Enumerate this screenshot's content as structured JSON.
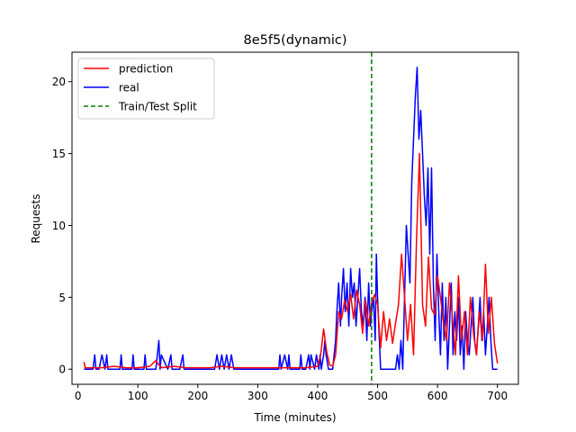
{
  "chart_data": {
    "type": "line",
    "title": "8e5f5(dynamic)",
    "xlabel": "Time (minutes)",
    "ylabel": "Requests",
    "xlim": [
      -10,
      735
    ],
    "ylim": [
      -1.05,
      22.05
    ],
    "xticks": [
      0,
      100,
      200,
      300,
      400,
      500,
      600,
      700
    ],
    "yticks": [
      0,
      5,
      10,
      15,
      20
    ],
    "grid": false,
    "legend": "upper-left",
    "split_x": 490,
    "series": [
      {
        "name": "prediction",
        "color": "#ff0000",
        "style": "solid",
        "x": [
          10,
          12,
          20,
          40,
          60,
          80,
          100,
          120,
          130,
          135,
          140,
          160,
          180,
          200,
          220,
          240,
          260,
          280,
          300,
          320,
          340,
          360,
          380,
          400,
          405,
          410,
          415,
          420,
          425,
          430,
          435,
          440,
          445,
          450,
          455,
          460,
          465,
          470,
          475,
          480,
          485,
          490,
          495,
          500,
          505,
          510,
          515,
          520,
          525,
          530,
          535,
          540,
          545,
          550,
          555,
          560,
          565,
          570,
          575,
          580,
          585,
          590,
          595,
          600,
          605,
          610,
          615,
          620,
          625,
          630,
          635,
          640,
          645,
          650,
          655,
          660,
          665,
          670,
          675,
          680,
          685,
          690,
          695,
          700
        ],
        "y": [
          0.5,
          0.1,
          0.1,
          0.1,
          0.2,
          0.1,
          0.1,
          0.2,
          0.6,
          0.3,
          0.1,
          0.2,
          0.1,
          0.1,
          0.1,
          0.2,
          0.1,
          0.1,
          0.1,
          0.1,
          0.1,
          0.1,
          0.1,
          0.2,
          1.0,
          2.8,
          1.2,
          0.3,
          0.2,
          1.0,
          4.0,
          3.5,
          4.8,
          4.0,
          5.2,
          3.5,
          5.5,
          4.5,
          2.5,
          4.8,
          3.0,
          4.6,
          5.2,
          4.5,
          1.5,
          4.0,
          2.0,
          3.5,
          1.8,
          3.2,
          4.5,
          8.0,
          5.0,
          2.0,
          4.5,
          1.0,
          9.0,
          15.0,
          4.5,
          3.0,
          7.8,
          4.2,
          3.8,
          6.5,
          5.0,
          3.2,
          2.0,
          6.0,
          3.5,
          1.0,
          6.5,
          2.0,
          4.0,
          1.0,
          5.0,
          2.5,
          1.0,
          4.0,
          2.0,
          7.3,
          2.5,
          5.0,
          1.8,
          0.4
        ]
      },
      {
        "name": "real",
        "color": "#0000ff",
        "style": "solid",
        "x": [
          10,
          25,
          28,
          30,
          35,
          40,
          45,
          48,
          50,
          70,
          72,
          74,
          90,
          92,
          94,
          110,
          112,
          114,
          130,
          135,
          137,
          139,
          150,
          155,
          157,
          159,
          170,
          175,
          177,
          180,
          200,
          228,
          232,
          236,
          240,
          244,
          248,
          252,
          256,
          260,
          280,
          300,
          320,
          335,
          337,
          339,
          345,
          350,
          352,
          354,
          360,
          370,
          372,
          374,
          380,
          385,
          387,
          389,
          395,
          398,
          402,
          404,
          406,
          410,
          412,
          414,
          418,
          420,
          422,
          425,
          430,
          432,
          435,
          438,
          440,
          443,
          446,
          449,
          452,
          455,
          458,
          461,
          464,
          467,
          470,
          473,
          476,
          479,
          482,
          485,
          488,
          490,
          493,
          496,
          498,
          500,
          505,
          510,
          515,
          520,
          525,
          530,
          533,
          536,
          539,
          542,
          545,
          548,
          551,
          554,
          557,
          560,
          563,
          566,
          569,
          572,
          575,
          578,
          581,
          584,
          587,
          590,
          593,
          596,
          599,
          602,
          605,
          608,
          611,
          614,
          617,
          620,
          623,
          626,
          629,
          632,
          635,
          638,
          641,
          644,
          647,
          650,
          653,
          656,
          659,
          662,
          665,
          668,
          671,
          674,
          677,
          680,
          683,
          686,
          689,
          692,
          695,
          700
        ],
        "y": [
          0,
          0,
          1,
          0,
          0,
          1,
          0,
          1,
          0,
          0,
          1,
          0,
          0,
          1,
          0,
          0,
          1,
          0,
          0,
          2,
          0,
          1,
          0,
          1,
          0,
          0,
          0,
          1,
          0,
          0,
          0,
          0,
          1,
          0,
          1,
          0,
          1,
          0,
          1,
          0,
          0,
          0,
          0,
          0,
          1,
          0,
          1,
          0,
          1,
          0,
          0,
          0,
          1,
          0,
          0,
          1,
          0,
          1,
          0,
          1,
          0,
          1,
          0,
          1,
          2,
          1,
          0,
          0,
          0,
          0,
          2,
          4,
          6,
          3,
          5,
          7,
          4,
          6,
          3,
          7,
          5,
          6,
          3,
          5,
          7,
          4,
          3,
          5,
          2,
          6,
          3,
          4,
          5,
          2,
          8,
          5,
          0,
          0,
          0,
          0,
          0,
          0,
          1,
          0,
          2,
          0,
          5,
          10,
          8,
          6,
          13,
          16,
          19,
          21,
          16,
          18,
          15,
          12,
          10,
          14,
          8,
          14,
          6,
          2,
          8,
          4,
          1,
          6,
          2,
          5,
          0,
          3,
          6,
          1,
          4,
          2,
          5,
          1,
          3,
          0,
          4,
          2,
          1,
          3,
          5,
          2,
          1,
          3,
          5,
          2,
          4,
          1,
          3,
          5,
          2,
          0,
          0,
          0
        ]
      },
      {
        "name": "Train/Test Split",
        "color": "#008000",
        "style": "dashed"
      }
    ]
  }
}
